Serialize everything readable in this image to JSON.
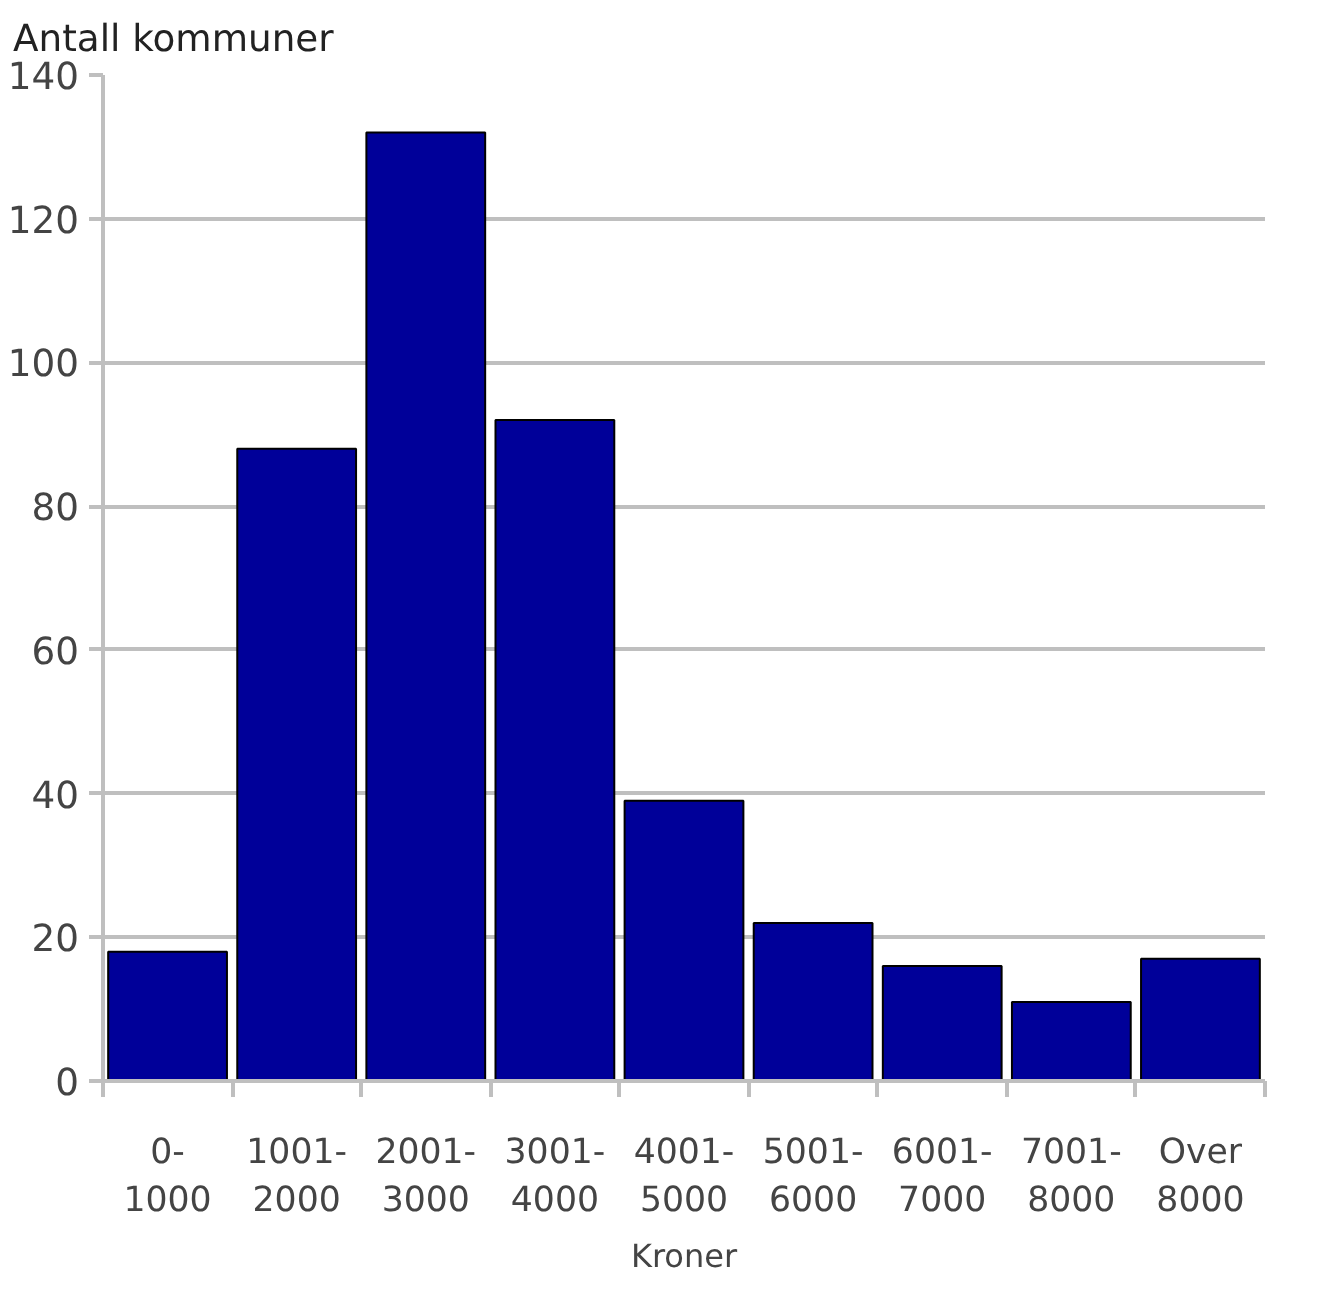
{
  "chart_data": {
    "type": "bar",
    "ylabel": "Antall kommuner",
    "xlabel": "Kroner",
    "categories": [
      "0-1000",
      "1001-2000",
      "2001-3000",
      "3001-4000",
      "4001-5000",
      "5001-6000",
      "6001-7000",
      "7001-8000",
      "Over 8000"
    ],
    "values": [
      18,
      88,
      132,
      92,
      39,
      22,
      16,
      11,
      17
    ],
    "color": "#000099",
    "ylim": [
      0,
      140
    ],
    "yticks": [
      0,
      20,
      40,
      60,
      80,
      100,
      120,
      140
    ],
    "grid": "y"
  }
}
